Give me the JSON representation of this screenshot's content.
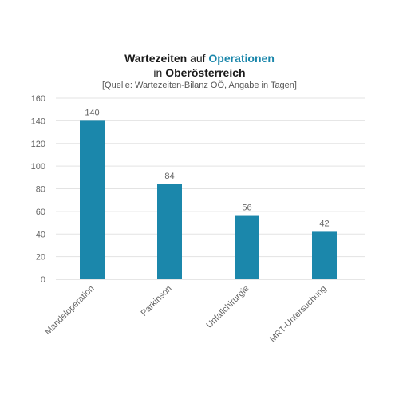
{
  "title": {
    "line1_bold": "Wartezeiten",
    "line1_normal": "auf",
    "line1_accent": "Operationen",
    "line2_normal": "in",
    "line2_bold": "Oberösterreich",
    "source": "[Quelle: Wartezeiten-Bilanz OÖ, Angabe in Tagen]"
  },
  "colors": {
    "bar": "#1b87ab",
    "accent": "#1b87ab",
    "grid": "#e3e3e3",
    "axis": "#cccccc"
  },
  "chart_data": {
    "type": "bar",
    "categories": [
      "Mandeloperation",
      "Parkinson",
      "Unfallchirurgie",
      "MRT-Untersuchung"
    ],
    "values": [
      140,
      84,
      56,
      42
    ],
    "data_labels": [
      "140",
      "84",
      "56",
      "42"
    ],
    "yticks": [
      0,
      20,
      40,
      60,
      80,
      100,
      120,
      140,
      160
    ],
    "ylim": [
      0,
      160
    ],
    "grid": true,
    "legend": "none",
    "xlabel": "",
    "ylabel": ""
  }
}
